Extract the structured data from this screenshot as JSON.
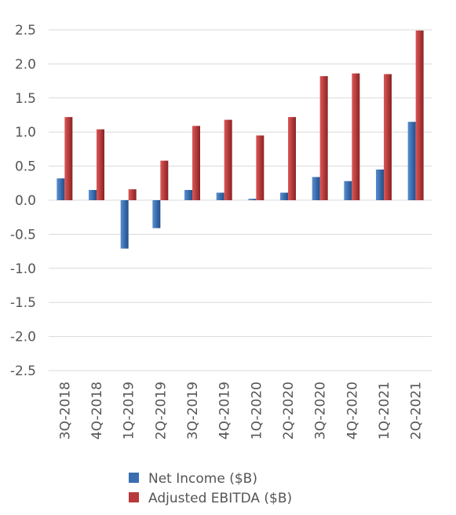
{
  "chart_data": {
    "type": "bar",
    "title": "",
    "xlabel": "",
    "ylabel": "",
    "ylim": [
      -2.5,
      2.5
    ],
    "yticks": [
      "2.5",
      "2.0",
      "1.5",
      "1.0",
      "0.5",
      "0.0",
      "-0.5",
      "-1.0",
      "-1.5",
      "-2.0",
      "-2.5"
    ],
    "ytick_values": [
      2.5,
      2.0,
      1.5,
      1.0,
      0.5,
      0.0,
      -0.5,
      -1.0,
      -1.5,
      -2.0,
      -2.5
    ],
    "grid": true,
    "legend_position": "bottom",
    "categories": [
      "3Q-2018",
      "4Q-2018",
      "1Q-2019",
      "2Q-2019",
      "3Q-2019",
      "4Q-2019",
      "1Q-2020",
      "2Q-2020",
      "3Q-2020",
      "4Q-2020",
      "1Q-2021",
      "2Q-2021"
    ],
    "series": [
      {
        "name": "Net Income ($B)",
        "color": "#3a6eb0",
        "values": [
          0.32,
          0.15,
          -0.71,
          -0.41,
          0.15,
          0.11,
          0.02,
          0.11,
          0.34,
          0.28,
          0.45,
          1.15
        ]
      },
      {
        "name": "Adjusted EBITDA ($B)",
        "color": "#b83a3a",
        "values": [
          1.22,
          1.04,
          0.16,
          0.58,
          1.09,
          1.18,
          0.95,
          1.22,
          1.82,
          1.86,
          1.85,
          2.49
        ]
      }
    ]
  }
}
